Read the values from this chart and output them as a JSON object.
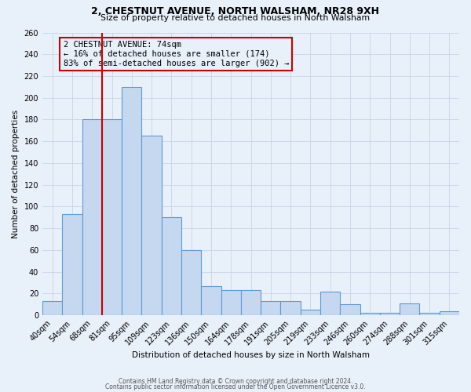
{
  "title": "2, CHESTNUT AVENUE, NORTH WALSHAM, NR28 9XH",
  "subtitle": "Size of property relative to detached houses in North Walsham",
  "xlabel": "Distribution of detached houses by size in North Walsham",
  "ylabel": "Number of detached properties",
  "bar_labels": [
    "40sqm",
    "54sqm",
    "68sqm",
    "81sqm",
    "95sqm",
    "109sqm",
    "123sqm",
    "136sqm",
    "150sqm",
    "164sqm",
    "178sqm",
    "191sqm",
    "205sqm",
    "219sqm",
    "233sqm",
    "246sqm",
    "260sqm",
    "274sqm",
    "288sqm",
    "301sqm",
    "315sqm"
  ],
  "bar_values": [
    13,
    93,
    180,
    180,
    210,
    165,
    90,
    60,
    27,
    23,
    23,
    13,
    13,
    5,
    22,
    10,
    2,
    2,
    11,
    2,
    4
  ],
  "bar_color": "#c5d8f0",
  "bar_edge_color": "#5b9bd5",
  "ylim": [
    0,
    260
  ],
  "yticks": [
    0,
    20,
    40,
    60,
    80,
    100,
    120,
    140,
    160,
    180,
    200,
    220,
    240,
    260
  ],
  "property_label": "2 CHESTNUT AVENUE: 74sqm",
  "annotation_line1": "← 16% of detached houses are smaller (174)",
  "annotation_line2": "83% of semi-detached houses are larger (902) →",
  "vline_color": "#cc0000",
  "box_color": "#cc0000",
  "footer1": "Contains HM Land Registry data © Crown copyright and database right 2024.",
  "footer2": "Contains public sector information licensed under the Open Government Licence v3.0.",
  "background_color": "#e8f0fa",
  "grid_color": "#c8d4e8"
}
